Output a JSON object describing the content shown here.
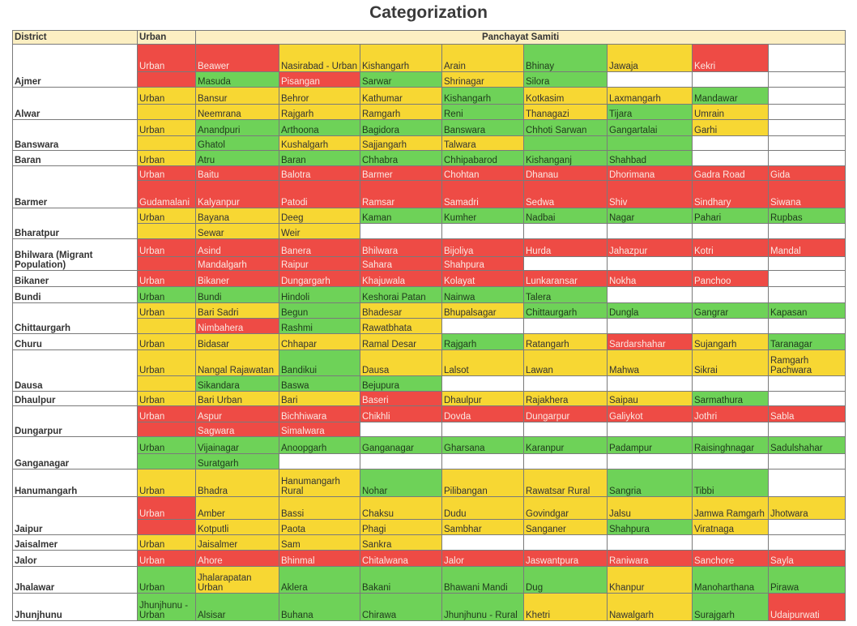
{
  "title": "Categorization",
  "headers": {
    "district": "District",
    "urban": "Urban",
    "panchayat": "Panchayat Samiti"
  },
  "colors": {
    "red": "#ee4b45",
    "yellow": "#f7d733",
    "green": "#6ed258",
    "white": "#ffffff",
    "header": "#fcefc2"
  },
  "legend_codes": {
    "r": "red",
    "y": "yellow",
    "g": "green",
    "w": "white"
  },
  "rows": [
    {
      "d": "Ajmer",
      "u": [
        "Urban",
        "r"
      ],
      "c": [
        [
          "Beawer",
          "r"
        ],
        [
          "Nasirabad - Urban",
          "y"
        ],
        [
          "Kishangarh",
          "y"
        ],
        [
          "Arain",
          "y"
        ],
        [
          "Bhinay",
          "g"
        ],
        [
          "Jawaja",
          "y"
        ],
        [
          "Kekri",
          "r"
        ],
        [
          "",
          "w"
        ]
      ]
    },
    {
      "u": [
        "",
        "r"
      ],
      "c": [
        [
          "Masuda",
          "g"
        ],
        [
          "Pisangan",
          "r"
        ],
        [
          "Sarwar",
          "g"
        ],
        [
          "Shrinagar",
          "y"
        ],
        [
          "Silora",
          "g"
        ],
        [
          "",
          "w"
        ],
        [
          "",
          "w"
        ],
        [
          "",
          "w"
        ]
      ]
    },
    {
      "d": "Alwar",
      "u": [
        "Urban",
        "y"
      ],
      "c": [
        [
          "Bansur",
          "y"
        ],
        [
          "Behror",
          "y"
        ],
        [
          "Kathumar",
          "y"
        ],
        [
          "Kishangarh",
          "g"
        ],
        [
          "Kotkasim",
          "y"
        ],
        [
          "Laxmangarh",
          "y"
        ],
        [
          "Mandawar",
          "g"
        ],
        [
          "",
          "w"
        ]
      ]
    },
    {
      "u": [
        "",
        "y"
      ],
      "c": [
        [
          "Neemrana",
          "y"
        ],
        [
          "Rajgarh",
          "y"
        ],
        [
          "Ramgarh",
          "y"
        ],
        [
          "Reni",
          "g"
        ],
        [
          "Thanagazi",
          "y"
        ],
        [
          "Tijara",
          "g"
        ],
        [
          "Umrain",
          "y"
        ],
        [
          "",
          "w"
        ]
      ]
    },
    {
      "d": "Banswara",
      "u": [
        "Urban",
        "y"
      ],
      "c": [
        [
          "Anandpuri",
          "g"
        ],
        [
          "Arthoona",
          "g"
        ],
        [
          "Bagidora",
          "g"
        ],
        [
          "Banswara",
          "g"
        ],
        [
          "Chhoti Sarwan",
          "g"
        ],
        [
          "Gangartalai",
          "g"
        ],
        [
          "Garhi",
          "y"
        ],
        [
          "",
          "w"
        ]
      ]
    },
    {
      "u": [
        "",
        "y"
      ],
      "c": [
        [
          "Ghatol",
          "g"
        ],
        [
          "Kushalgarh",
          "y"
        ],
        [
          "Sajjangarh",
          "y"
        ],
        [
          "Talwara",
          "y"
        ],
        [
          "",
          "g"
        ],
        [
          "",
          "g"
        ],
        [
          "",
          "w"
        ],
        [
          "",
          "w"
        ]
      ]
    },
    {
      "d": "Baran",
      "u": [
        "Urban",
        "y"
      ],
      "c": [
        [
          "Atru",
          "g"
        ],
        [
          "Baran",
          "g"
        ],
        [
          "Chhabra",
          "g"
        ],
        [
          "Chhipabarod",
          "g"
        ],
        [
          "Kishanganj",
          "g"
        ],
        [
          "Shahbad",
          "g"
        ],
        [
          "",
          "w"
        ],
        [
          "",
          "w"
        ]
      ]
    },
    {
      "d": "Barmer",
      "u": [
        "Urban",
        "r"
      ],
      "c": [
        [
          "Baitu",
          "r"
        ],
        [
          "Balotra",
          "r"
        ],
        [
          "Barmer",
          "r"
        ],
        [
          "Chohtan",
          "r"
        ],
        [
          "Dhanau",
          "r"
        ],
        [
          "Dhorimana",
          "r"
        ],
        [
          "Gadra Road",
          "r"
        ],
        [
          "Gida",
          "r"
        ]
      ]
    },
    {
      "u": [
        "Gudamalani",
        "r"
      ],
      "c": [
        [
          "Kalyanpur",
          "r"
        ],
        [
          "Patodi",
          "r"
        ],
        [
          "Ramsar",
          "r"
        ],
        [
          "Samadri",
          "r"
        ],
        [
          "Sedwa",
          "r"
        ],
        [
          "Shiv",
          "r"
        ],
        [
          "Sindhary",
          "r"
        ],
        [
          "Siwana",
          "r"
        ]
      ]
    },
    {
      "d": "Bharatpur",
      "u": [
        "Urban",
        "y"
      ],
      "c": [
        [
          "Bayana",
          "y"
        ],
        [
          "Deeg",
          "y"
        ],
        [
          "Kaman",
          "g"
        ],
        [
          "Kumher",
          "g"
        ],
        [
          "Nadbai",
          "g"
        ],
        [
          "Nagar",
          "g"
        ],
        [
          "Pahari",
          "g"
        ],
        [
          "Rupbas",
          "g"
        ]
      ]
    },
    {
      "u": [
        "",
        "y"
      ],
      "c": [
        [
          "Sewar",
          "y"
        ],
        [
          "Weir",
          "y"
        ],
        [
          "",
          "w"
        ],
        [
          "",
          "w"
        ],
        [
          "",
          "w"
        ],
        [
          "",
          "w"
        ],
        [
          "",
          "w"
        ],
        [
          "",
          "w"
        ]
      ]
    },
    {
      "d": "Bhilwara (Migrant Population)",
      "u": [
        "Urban",
        "r"
      ],
      "c": [
        [
          "Asind",
          "r"
        ],
        [
          "Banera",
          "r"
        ],
        [
          "Bhilwara",
          "r"
        ],
        [
          "Bijoliya",
          "r"
        ],
        [
          "Hurda",
          "r"
        ],
        [
          "Jahazpur",
          "r"
        ],
        [
          "Kotri",
          "r"
        ],
        [
          "Mandal",
          "r"
        ]
      ]
    },
    {
      "u": [
        "",
        "r"
      ],
      "c": [
        [
          "Mandalgarh",
          "r"
        ],
        [
          "Raipur",
          "r"
        ],
        [
          "Sahara",
          "r"
        ],
        [
          "Shahpura",
          "r"
        ],
        [
          "",
          "w"
        ],
        [
          "",
          "w"
        ],
        [
          "",
          "w"
        ],
        [
          "",
          "w"
        ]
      ]
    },
    {
      "d": "Bikaner",
      "u": [
        "Urban",
        "r"
      ],
      "c": [
        [
          "Bikaner",
          "r"
        ],
        [
          "Dungargarh",
          "r"
        ],
        [
          "Khajuwala",
          "r"
        ],
        [
          "Kolayat",
          "r"
        ],
        [
          "Lunkaransar",
          "r"
        ],
        [
          "Nokha",
          "r"
        ],
        [
          "Panchoo",
          "r"
        ],
        [
          "",
          "w"
        ]
      ]
    },
    {
      "d": "Bundi",
      "u": [
        "Urban",
        "g"
      ],
      "c": [
        [
          "Bundi",
          "g"
        ],
        [
          "Hindoli",
          "g"
        ],
        [
          "Keshorai Patan",
          "g"
        ],
        [
          "Nainwa",
          "g"
        ],
        [
          "Talera",
          "g"
        ],
        [
          "",
          "w"
        ],
        [
          "",
          "w"
        ],
        [
          "",
          "w"
        ]
      ]
    },
    {
      "d": "Chittaurgarh",
      "u": [
        "Urban",
        "y"
      ],
      "c": [
        [
          "Bari Sadri",
          "y"
        ],
        [
          "Begun",
          "g"
        ],
        [
          "Bhadesar",
          "y"
        ],
        [
          "Bhupalsagar",
          "y"
        ],
        [
          "Chittaurgarh",
          "g"
        ],
        [
          "Dungla",
          "g"
        ],
        [
          "Gangrar",
          "g"
        ],
        [
          "Kapasan",
          "g"
        ]
      ]
    },
    {
      "u": [
        "",
        "y"
      ],
      "c": [
        [
          "Nimbahera",
          "r"
        ],
        [
          "Rashmi",
          "g"
        ],
        [
          "Rawatbhata",
          "y"
        ],
        [
          "",
          "w"
        ],
        [
          "",
          "w"
        ],
        [
          "",
          "w"
        ],
        [
          "",
          "w"
        ],
        [
          "",
          "w"
        ]
      ]
    },
    {
      "d": "Churu",
      "u": [
        "Urban",
        "y"
      ],
      "c": [
        [
          "Bidasar",
          "y"
        ],
        [
          "Chhapar",
          "y"
        ],
        [
          "Ramal Desar",
          "y"
        ],
        [
          "Rajgarh",
          "g"
        ],
        [
          "Ratangarh",
          "y"
        ],
        [
          "Sardarshahar",
          "r"
        ],
        [
          "Sujangarh",
          "y"
        ],
        [
          "Taranagar",
          "g"
        ]
      ]
    },
    {
      "d": "Dausa",
      "u": [
        "Urban",
        "y"
      ],
      "c": [
        [
          "Nangal Rajawatan",
          "y"
        ],
        [
          "Bandikui",
          "g"
        ],
        [
          "Dausa",
          "y"
        ],
        [
          "Lalsot",
          "y"
        ],
        [
          "Lawan",
          "y"
        ],
        [
          "Mahwa",
          "y"
        ],
        [
          "Sikrai",
          "y"
        ],
        [
          "Ramgarh Pachwara",
          "y"
        ]
      ]
    },
    {
      "u": [
        "",
        "y"
      ],
      "c": [
        [
          "Sikandara",
          "g"
        ],
        [
          "Baswa",
          "g"
        ],
        [
          "Bejupura",
          "g"
        ],
        [
          "",
          "w"
        ],
        [
          "",
          "w"
        ],
        [
          "",
          "w"
        ],
        [
          "",
          "w"
        ],
        [
          "",
          "w"
        ]
      ]
    },
    {
      "d": "Dhaulpur",
      "u": [
        "Urban",
        "y"
      ],
      "c": [
        [
          "Bari Urban",
          "y"
        ],
        [
          "Bari",
          "y"
        ],
        [
          "Baseri",
          "r"
        ],
        [
          "Dhaulpur",
          "y"
        ],
        [
          "Rajakhera",
          "y"
        ],
        [
          "Saipau",
          "y"
        ],
        [
          "Sarmathura",
          "g"
        ],
        [
          "",
          "w"
        ]
      ]
    },
    {
      "d": "Dungarpur",
      "u": [
        "Urban",
        "r"
      ],
      "c": [
        [
          "Aspur",
          "r"
        ],
        [
          "Bichhiwara",
          "r"
        ],
        [
          "Chikhli",
          "r"
        ],
        [
          "Dovda",
          "r"
        ],
        [
          "Dungarpur",
          "r"
        ],
        [
          "Galiykot",
          "r"
        ],
        [
          "Jothri",
          "r"
        ],
        [
          "Sabla",
          "r"
        ]
      ]
    },
    {
      "u": [
        "",
        "r"
      ],
      "c": [
        [
          "Sagwara",
          "r"
        ],
        [
          "Simalwara",
          "r"
        ],
        [
          "",
          "w"
        ],
        [
          "",
          "w"
        ],
        [
          "",
          "w"
        ],
        [
          "",
          "w"
        ],
        [
          "",
          "w"
        ],
        [
          "",
          "w"
        ]
      ]
    },
    {
      "d": "Ganganagar",
      "u": [
        "Urban",
        "g"
      ],
      "c": [
        [
          "Vijainagar",
          "g"
        ],
        [
          "Anoopgarh",
          "g"
        ],
        [
          "Ganganagar",
          "g"
        ],
        [
          "Gharsana",
          "g"
        ],
        [
          "Karanpur",
          "g"
        ],
        [
          "Padampur",
          "g"
        ],
        [
          "Raisinghnagar",
          "g"
        ],
        [
          "Sadulshahar",
          "g"
        ]
      ]
    },
    {
      "u": [
        "",
        "g"
      ],
      "c": [
        [
          "Suratgarh",
          "g"
        ],
        [
          "",
          "w"
        ],
        [
          "",
          "w"
        ],
        [
          "",
          "w"
        ],
        [
          "",
          "w"
        ],
        [
          "",
          "w"
        ],
        [
          "",
          "w"
        ],
        [
          "",
          "w"
        ]
      ]
    },
    {
      "d": "Hanumangarh",
      "u": [
        "Urban",
        "y"
      ],
      "c": [
        [
          "Bhadra",
          "y"
        ],
        [
          "Hanumangarh Rural",
          "y"
        ],
        [
          "Nohar",
          "g"
        ],
        [
          "Pilibangan",
          "y"
        ],
        [
          "Rawatsar Rural",
          "y"
        ],
        [
          "Sangria",
          "g"
        ],
        [
          "Tibbi",
          "g"
        ],
        [
          "",
          "w"
        ]
      ]
    },
    {
      "d": "Jaipur",
      "u": [
        "Urban",
        "r"
      ],
      "c": [
        [
          "Amber",
          "y"
        ],
        [
          "Bassi",
          "y"
        ],
        [
          "Chaksu",
          "y"
        ],
        [
          "Dudu",
          "y"
        ],
        [
          "Govindgar",
          "y"
        ],
        [
          "Jalsu",
          "y"
        ],
        [
          "Jamwa Ramgarh",
          "y"
        ],
        [
          "Jhotwara",
          "y"
        ]
      ]
    },
    {
      "u": [
        "",
        "r"
      ],
      "c": [
        [
          "Kotputli",
          "y"
        ],
        [
          "Paota",
          "y"
        ],
        [
          "Phagi",
          "y"
        ],
        [
          "Sambhar",
          "y"
        ],
        [
          "Sanganer",
          "y"
        ],
        [
          "Shahpura",
          "g"
        ],
        [
          "Viratnaga",
          "y"
        ],
        [
          "",
          "w"
        ]
      ]
    },
    {
      "d": "Jaisalmer",
      "u": [
        "Urban",
        "y"
      ],
      "c": [
        [
          "Jaisalmer",
          "y"
        ],
        [
          "Sam",
          "y"
        ],
        [
          "Sankra",
          "y"
        ],
        [
          "",
          "w"
        ],
        [
          "",
          "w"
        ],
        [
          "",
          "w"
        ],
        [
          "",
          "w"
        ],
        [
          "",
          "w"
        ]
      ]
    },
    {
      "d": "Jalor",
      "u": [
        "Urban",
        "r"
      ],
      "c": [
        [
          "Ahore",
          "r"
        ],
        [
          "Bhinmal",
          "r"
        ],
        [
          "Chitalwana",
          "r"
        ],
        [
          "Jalor",
          "r"
        ],
        [
          "Jaswantpura",
          "r"
        ],
        [
          "Raniwara",
          "r"
        ],
        [
          "Sanchore",
          "r"
        ],
        [
          "Sayla",
          "r"
        ]
      ]
    },
    {
      "d": "Jhalawar",
      "u": [
        "Urban",
        "g"
      ],
      "c": [
        [
          "Jhalarapatan Urban",
          "y"
        ],
        [
          "Aklera",
          "g"
        ],
        [
          "Bakani",
          "g"
        ],
        [
          "Bhawani Mandi",
          "g"
        ],
        [
          "Dug",
          "g"
        ],
        [
          "Khanpur",
          "y"
        ],
        [
          "Manoharthana",
          "g"
        ],
        [
          "Pirawa",
          "g"
        ]
      ]
    },
    {
      "d": "Jhunjhunu",
      "u": [
        "Jhunjhunu - Urban",
        "g"
      ],
      "c": [
        [
          "Alsisar",
          "g"
        ],
        [
          "Buhana",
          "g"
        ],
        [
          "Chirawa",
          "g"
        ],
        [
          "Jhunjhunu - Rural",
          "g"
        ],
        [
          "Khetri",
          "y"
        ],
        [
          "Nawalgarh",
          "y"
        ],
        [
          "Surajgarh",
          "g"
        ],
        [
          "Udaipurwati",
          "r"
        ]
      ]
    }
  ]
}
